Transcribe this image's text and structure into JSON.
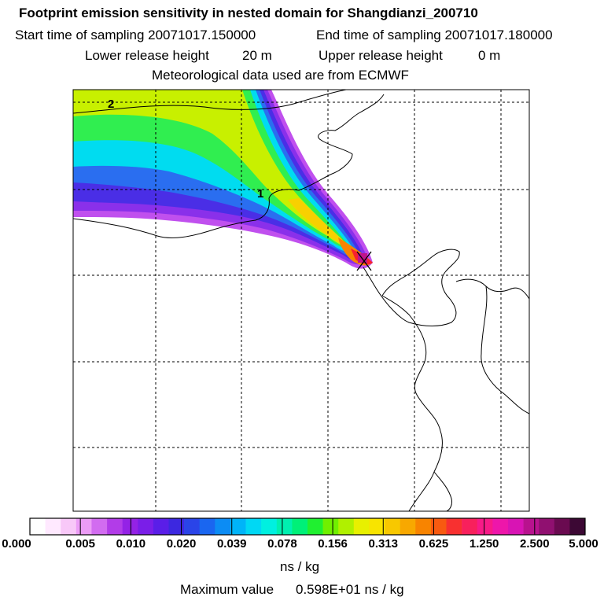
{
  "title": "Footprint emission sensitivity in nested domain for Shangdianzi_200710",
  "start_label": "Start time of sampling 20071017.150000",
  "end_label": "End time of sampling 20071017.180000",
  "lower_label": "Lower release height",
  "lower_value": "20 m",
  "upper_label": "Upper release height",
  "upper_value": "0 m",
  "met_label": "Meteorological data used are from ECMWF",
  "map": {
    "markers": [
      "1",
      "2"
    ]
  },
  "colorbar": {
    "ticks": [
      "0.000",
      "0.005",
      "0.010",
      "0.020",
      "0.039",
      "0.078",
      "0.156",
      "0.313",
      "0.625",
      "1.250",
      "2.500",
      "5.000"
    ],
    "colors": [
      "#ffffff",
      "#ffe9ff",
      "#f8c8f8",
      "#ec9cf6",
      "#d26cf0",
      "#b23ce8",
      "#9422e6",
      "#7a1ee8",
      "#5a1ee8",
      "#3c28e0",
      "#2a44e8",
      "#1a66f0",
      "#0c8cf4",
      "#00b4f8",
      "#00d8f4",
      "#00f0e0",
      "#00f0b0",
      "#00f078",
      "#20f030",
      "#70f000",
      "#b0f000",
      "#e8f000",
      "#f8e400",
      "#f8c800",
      "#f8a800",
      "#f88400",
      "#f85a10",
      "#f83030",
      "#f8205c",
      "#f81a88",
      "#ee16aa",
      "#d814b4",
      "#b8128e",
      "#901070",
      "#6a0a50",
      "#3c0834"
    ],
    "unit": "ns / kg"
  },
  "max_label": "Maximum value",
  "max_value": "0.598E+01 ns / kg"
}
